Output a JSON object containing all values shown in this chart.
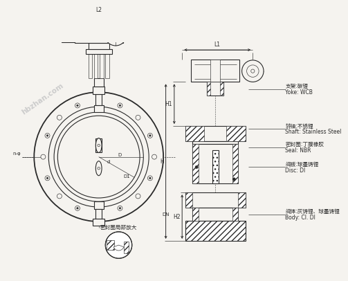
{
  "bg_color": "#f5f3ef",
  "line_color": "#2a2a2a",
  "labels": {
    "yoke_cn": "支架:碳锂",
    "yoke_en": "Yoke: WCB",
    "shaft_cn": "转轴:不锈锂",
    "shaft_en": "Shaft: Stainless Steel",
    "seal_cn": "密封圈:丁腹橡胶",
    "seal_en": "Seal: NBR",
    "disc_cn": "阀板:球墨铸锂",
    "disc_en": "Disc: DI",
    "body_cn": "阀体:灰铸锂、球墨铸锂",
    "body_en": "Body: CI. DI",
    "seal_detail": "密封圈局部放大",
    "L1": "L1",
    "L2": "L2",
    "H": "H",
    "H1": "H1",
    "H2": "H2",
    "D": "D",
    "D1": "D1",
    "d": "d",
    "DN": "DN",
    "n_phi": "n-φ"
  },
  "watermark": "hbzhan.com"
}
